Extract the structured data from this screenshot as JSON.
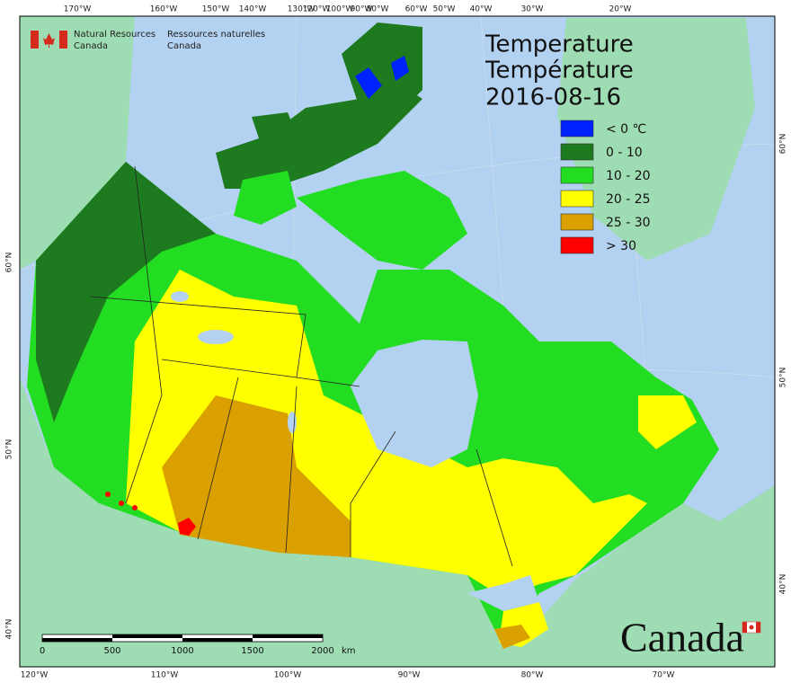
{
  "agency": {
    "en": [
      "Natural Resources",
      "Canada"
    ],
    "fr": [
      "Ressources naturelles",
      "Canada"
    ]
  },
  "title": [
    "Temperature",
    "Température"
  ],
  "date": "2016-08-16",
  "legend": [
    {
      "label": "< 0 ℃",
      "color": "#0022ff"
    },
    {
      "label": "0 - 10",
      "color": "#1e7a1e"
    },
    {
      "label": "10 - 20",
      "color": "#22dd22"
    },
    {
      "label": "20 - 25",
      "color": "#ffff00"
    },
    {
      "label": "25 - 30",
      "color": "#d9a000"
    },
    {
      "label": "> 30",
      "color": "#ff0000"
    }
  ],
  "graticule": {
    "top": [
      "170°W",
      "160°W",
      "150°W",
      "140°W",
      "130°W",
      "120°W",
      "100°W",
      "90°W",
      "80°W",
      "60°W",
      "50°W",
      "40°W",
      "30°W",
      "20°W"
    ],
    "bottom": [
      "120°W",
      "110°W",
      "100°W",
      "90°W",
      "80°W",
      "70°W"
    ],
    "left": [
      "60°N",
      "50°N",
      "40°N"
    ],
    "right": [
      "60°N",
      "50°N",
      "40°N"
    ]
  },
  "scale_bar": {
    "labels": [
      "0",
      "500",
      "1000",
      "1500",
      "2000"
    ],
    "unit": "km"
  },
  "wordmark": "Canada"
}
